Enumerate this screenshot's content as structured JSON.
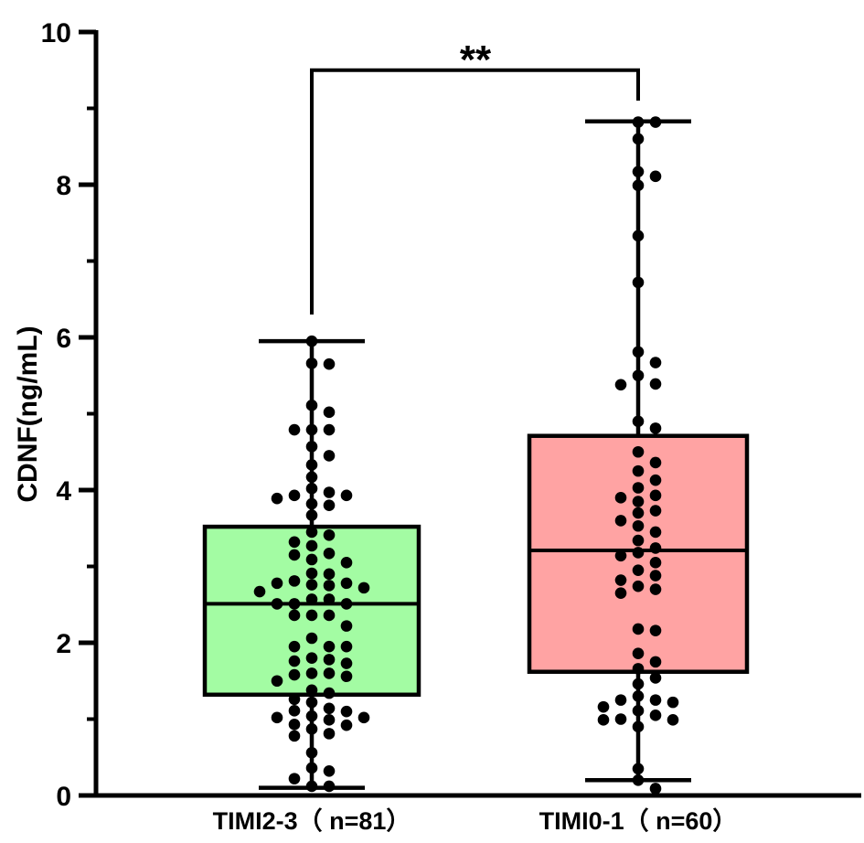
{
  "chart_data": {
    "type": "box",
    "title": "",
    "ylabel": "CDNF(ng/mL)",
    "xlabel": "",
    "ylim": [
      0,
      10
    ],
    "yticks": [
      "0",
      "2",
      "4",
      "6",
      "8",
      "10"
    ],
    "ytick_values": [
      0,
      2,
      4,
      6,
      8,
      10
    ],
    "minor_ticks": [
      1,
      3,
      5,
      7,
      9
    ],
    "grid": false,
    "significance": {
      "label": "**",
      "between": [
        0,
        1
      ],
      "start_values": [
        6.3,
        9.1
      ],
      "bracket_value": 9.5
    },
    "groups": [
      {
        "name": "TIMI2-3（ n=81）",
        "color": "#a3fca3",
        "min": 0.1,
        "q1": 1.32,
        "median": 2.51,
        "q3": 3.52,
        "max": 5.95,
        "points": [
          5.95,
          5.65,
          5.66,
          5.11,
          5.02,
          4.79,
          4.79,
          4.79,
          4.57,
          4.45,
          4.33,
          4.17,
          3.89,
          3.97,
          3.93,
          3.93,
          4.02,
          3.82,
          3.8,
          3.67,
          3.45,
          3.41,
          3.32,
          3.27,
          3.17,
          3.15,
          3.09,
          3.05,
          2.91,
          2.9,
          2.81,
          2.78,
          2.78,
          2.76,
          2.72,
          2.75,
          2.67,
          2.57,
          2.57,
          2.51,
          2.51,
          2.51,
          2.36,
          2.36,
          2.36,
          2.22,
          2.06,
          1.95,
          1.95,
          1.95,
          1.8,
          1.78,
          1.76,
          1.73,
          1.6,
          1.6,
          1.58,
          1.56,
          1.5,
          1.38,
          1.34,
          1.26,
          1.22,
          1.14,
          1.11,
          1.1,
          1.04,
          1.02,
          1.02,
          0.99,
          0.93,
          0.92,
          0.87,
          0.81,
          0.78,
          0.56,
          0.36,
          0.32,
          0.22,
          0.12,
          0.12
        ]
      },
      {
        "name": "TIMI0-1（ n=60）",
        "color": "#ffa3a3",
        "min": 0.2,
        "q1": 1.62,
        "median": 3.21,
        "q3": 4.71,
        "max": 8.83,
        "points": [
          8.82,
          8.82,
          8.6,
          8.17,
          8.11,
          7.99,
          7.33,
          6.72,
          5.81,
          5.67,
          5.5,
          5.39,
          5.38,
          4.9,
          4.81,
          4.5,
          4.36,
          4.13,
          4.03,
          3.93,
          3.9,
          3.85,
          3.73,
          3.7,
          3.53,
          3.45,
          3.34,
          3.24,
          3.18,
          3.14,
          3.05,
          2.88,
          2.82,
          2.74,
          2.65,
          2.18,
          2.16,
          1.86,
          1.75,
          1.66,
          1.54,
          1.46,
          1.25,
          1.25,
          1.22,
          1.11,
          1.16,
          0.99,
          0.99,
          0.9,
          0.35,
          0.2,
          0.09,
          2.7,
          3.6,
          1.0,
          4.25,
          1.3,
          2.95,
          1.05
        ]
      }
    ]
  }
}
